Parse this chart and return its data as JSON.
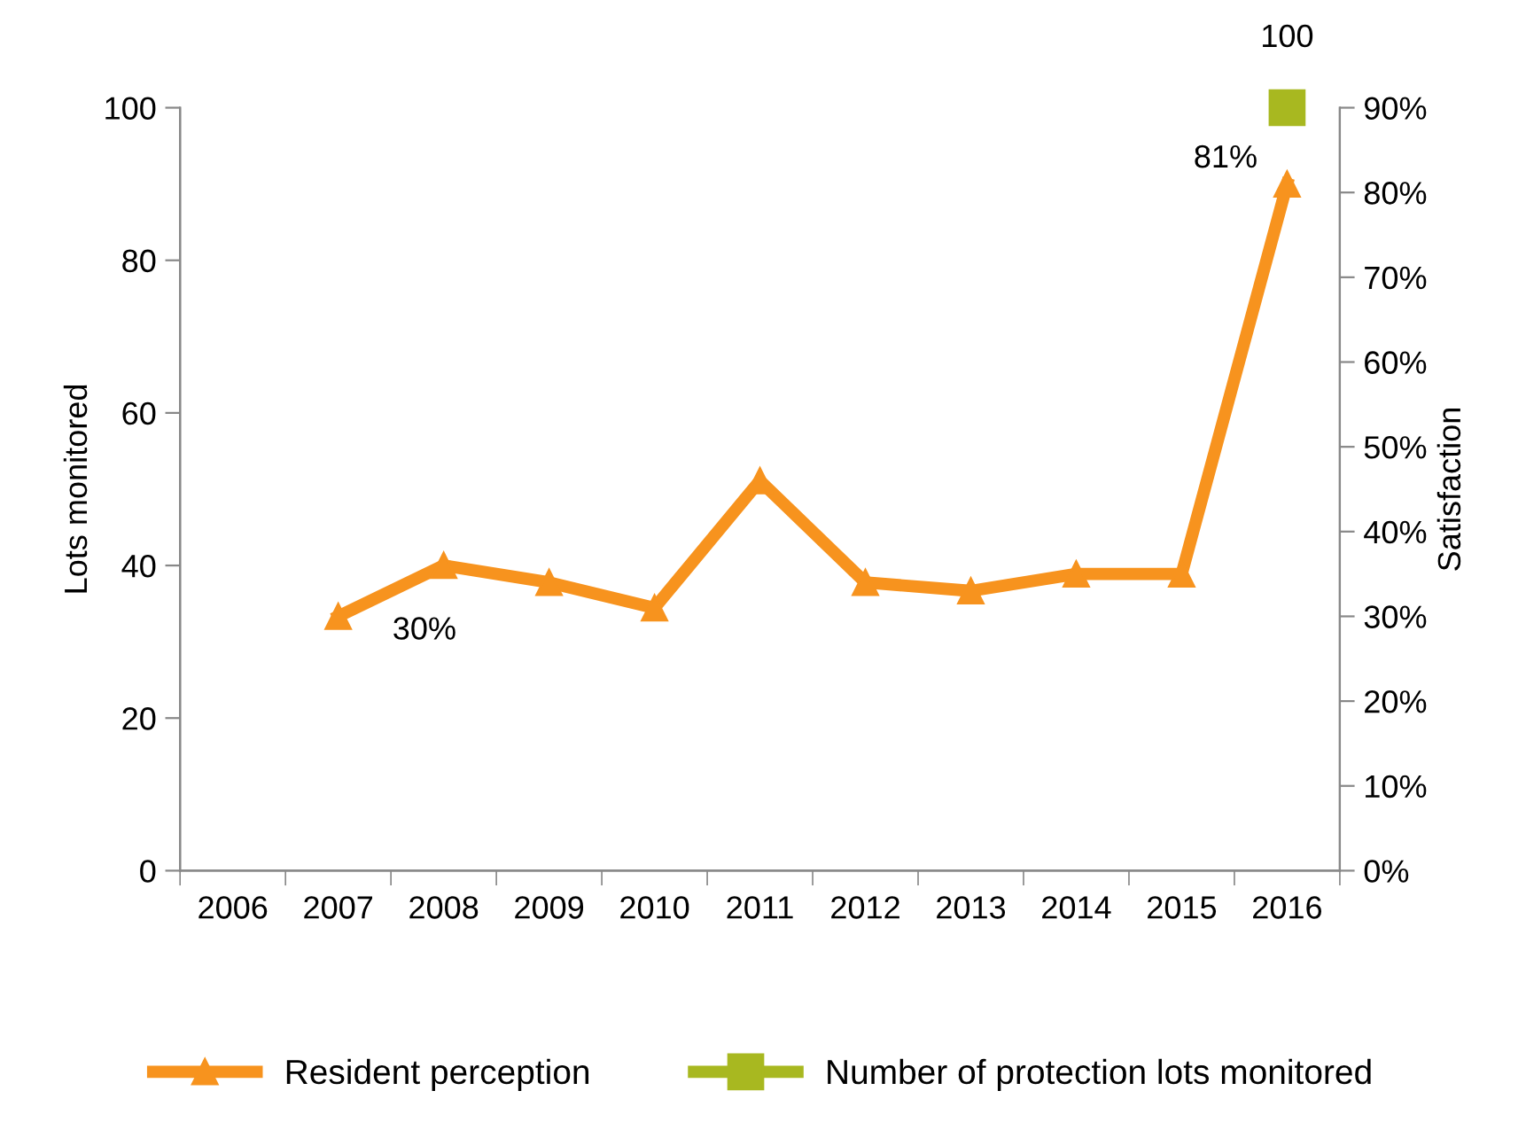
{
  "chart_data": {
    "type": "line",
    "categories": [
      "2006",
      "2007",
      "2008",
      "2009",
      "2010",
      "2011",
      "2012",
      "2013",
      "2014",
      "2015",
      "2016"
    ],
    "ylabel": "Lots monitored",
    "y2label": "Satisfaction",
    "ylim": [
      0,
      100
    ],
    "yticks": [
      0,
      20,
      40,
      60,
      80,
      100
    ],
    "y2lim": [
      0,
      90
    ],
    "y2ticks": [
      {
        "value": 0,
        "label": "0%"
      },
      {
        "value": 10,
        "label": "10%"
      },
      {
        "value": 20,
        "label": "20%"
      },
      {
        "value": 30,
        "label": "30%"
      },
      {
        "value": 40,
        "label": "40%"
      },
      {
        "value": 50,
        "label": "50%"
      },
      {
        "value": 60,
        "label": "60%"
      },
      {
        "value": 70,
        "label": "70%"
      },
      {
        "value": 80,
        "label": "80%"
      },
      {
        "value": 90,
        "label": "90%"
      }
    ],
    "series": [
      {
        "name": "Resident perception",
        "axis": "y2",
        "color": "#f7931e",
        "marker": "triangle",
        "values": [
          null,
          30,
          36,
          34,
          31,
          46,
          34,
          33,
          35,
          35,
          81
        ],
        "value_labels": [
          null,
          "30%",
          null,
          null,
          null,
          null,
          null,
          null,
          null,
          null,
          "81%"
        ]
      },
      {
        "name": "Number of protection lots monitored",
        "axis": "y",
        "color": "#a8b820",
        "marker": "square",
        "values": [
          null,
          null,
          null,
          null,
          null,
          null,
          null,
          null,
          null,
          null,
          100
        ],
        "value_labels": [
          null,
          null,
          null,
          null,
          null,
          null,
          null,
          null,
          null,
          null,
          "100"
        ]
      }
    ],
    "legend": "bottom",
    "grid": false
  }
}
